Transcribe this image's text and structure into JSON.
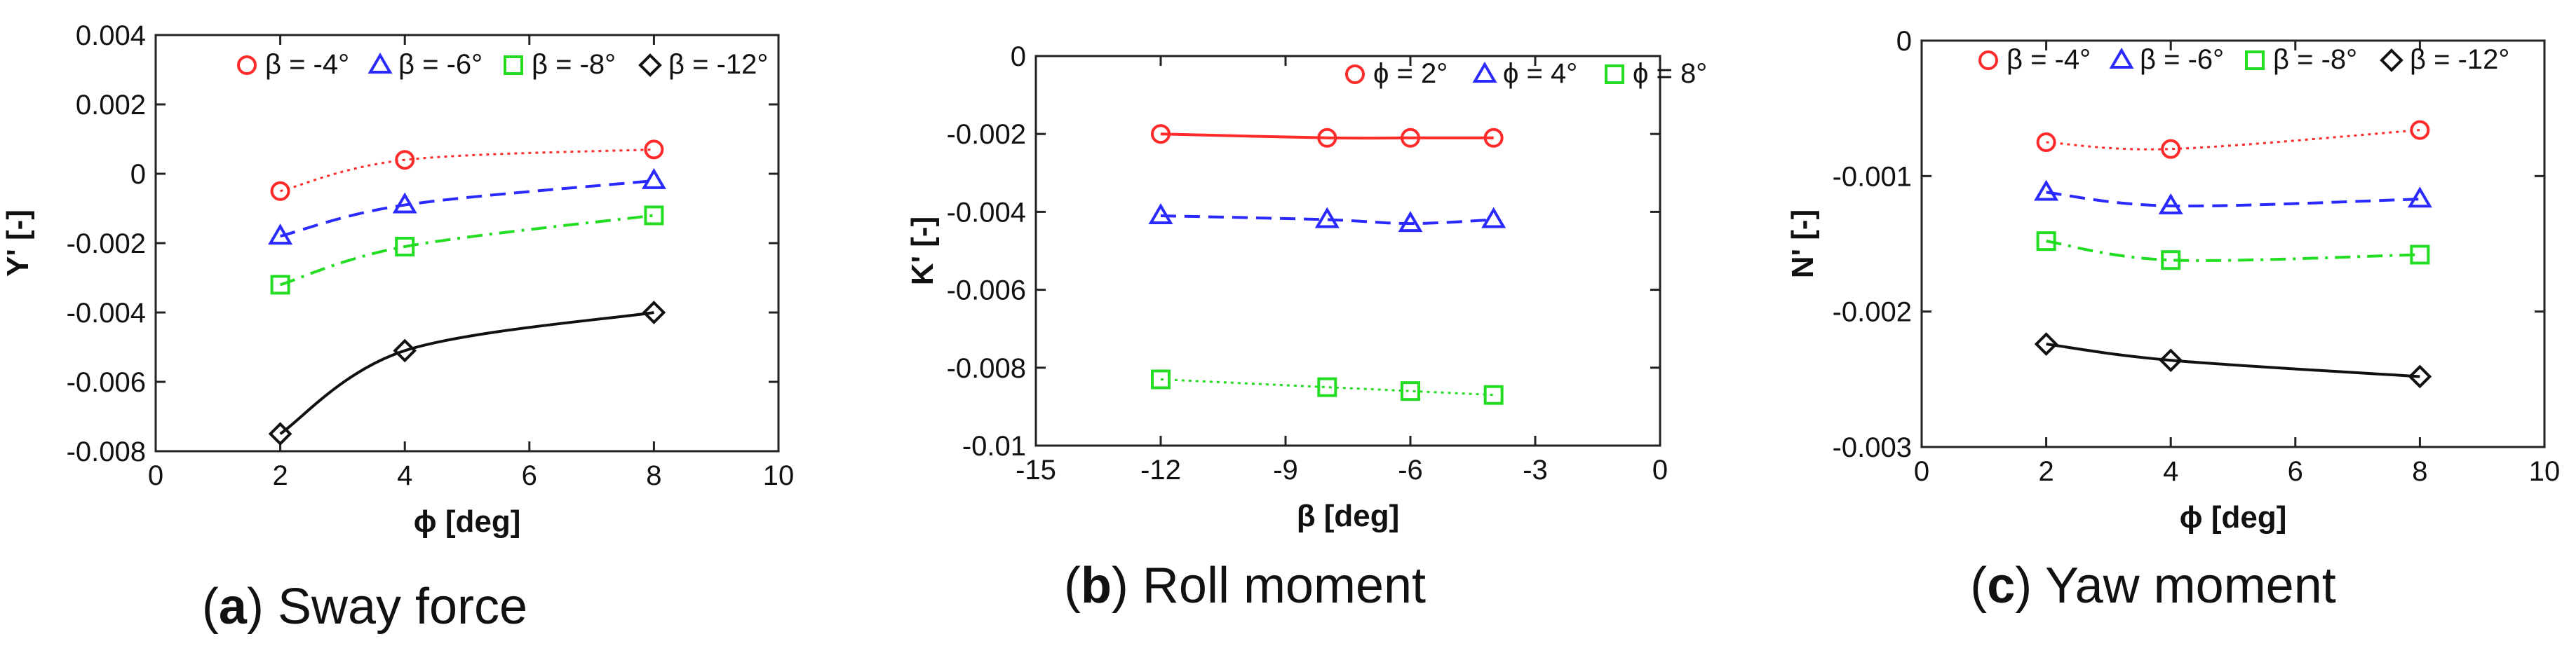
{
  "chart_data": [
    {
      "type": "line",
      "caption": {
        "letter": "a",
        "text": "Sway force"
      },
      "xlabel": "ϕ [deg]",
      "ylabel": "Y' [-]",
      "xlim": [
        0,
        10
      ],
      "ylim": [
        -0.008,
        0.004
      ],
      "xticks": [
        0,
        2,
        4,
        6,
        8,
        10
      ],
      "yticks": [
        -0.008,
        -0.006,
        -0.004,
        -0.002,
        0,
        0.002,
        0.004
      ],
      "x": [
        2,
        4,
        8
      ],
      "legend_position": "top",
      "series": [
        {
          "name": "β = -4°",
          "marker": "circle",
          "color": "#ff2a2a",
          "dash": "dotted",
          "values": [
            -0.0005,
            0.0004,
            0.0007
          ]
        },
        {
          "name": "β = -6°",
          "marker": "triangle",
          "color": "#2a2aff",
          "dash": "dashed",
          "values": [
            -0.0018,
            -0.0009,
            -0.0002
          ]
        },
        {
          "name": "β = -8°",
          "marker": "square",
          "color": "#22dd22",
          "dash": "dashdot",
          "values": [
            -0.0032,
            -0.0021,
            -0.0012
          ]
        },
        {
          "name": "β = -12°",
          "marker": "diamond",
          "color": "#111111",
          "dash": "solid",
          "values": [
            -0.0075,
            -0.0051,
            -0.004
          ]
        }
      ]
    },
    {
      "type": "line",
      "caption": {
        "letter": "b",
        "text": "Roll moment"
      },
      "xlabel": "β [deg]",
      "ylabel": "K' [-]",
      "xlim": [
        -15,
        0
      ],
      "ylim": [
        -0.01,
        0
      ],
      "xticks": [
        -15,
        -12,
        -9,
        -6,
        -3,
        0
      ],
      "yticks": [
        -0.01,
        -0.008,
        -0.006,
        -0.004,
        -0.002,
        0
      ],
      "x": [
        -12,
        -8,
        -6,
        -4
      ],
      "legend_position": "top-right",
      "series": [
        {
          "name": "ϕ = 2°",
          "marker": "circle",
          "color": "#ff2a2a",
          "dash": "solid",
          "values": [
            -0.002,
            -0.0021,
            -0.0021,
            -0.0021
          ]
        },
        {
          "name": "ϕ = 4°",
          "marker": "triangle",
          "color": "#2a2aff",
          "dash": "dashed",
          "values": [
            -0.0041,
            -0.0042,
            -0.0043,
            -0.0042
          ]
        },
        {
          "name": "ϕ = 8°",
          "marker": "square",
          "color": "#22dd22",
          "dash": "dotted",
          "values": [
            -0.0083,
            -0.0085,
            -0.0086,
            -0.0087
          ]
        }
      ]
    },
    {
      "type": "line",
      "caption": {
        "letter": "c",
        "text": "Yaw moment"
      },
      "xlabel": "ϕ [deg]",
      "ylabel": "N' [-]",
      "xlim": [
        0,
        10
      ],
      "ylim": [
        -0.003,
        0
      ],
      "xticks": [
        0,
        2,
        4,
        6,
        8,
        10
      ],
      "yticks": [
        -0.003,
        -0.002,
        -0.001,
        0
      ],
      "x": [
        2,
        4,
        8
      ],
      "legend_position": "top",
      "series": [
        {
          "name": "β = -4°",
          "marker": "circle",
          "color": "#ff2a2a",
          "dash": "dotted",
          "values": [
            -0.00075,
            -0.0008,
            -0.00066
          ]
        },
        {
          "name": "β = -6°",
          "marker": "triangle",
          "color": "#2a2aff",
          "dash": "dashed",
          "values": [
            -0.00112,
            -0.00122,
            -0.00117
          ]
        },
        {
          "name": "β = -8°",
          "marker": "square",
          "color": "#22dd22",
          "dash": "dashdot",
          "values": [
            -0.00148,
            -0.00162,
            -0.00158
          ]
        },
        {
          "name": "β = -12°",
          "marker": "diamond",
          "color": "#111111",
          "dash": "solid",
          "values": [
            -0.00224,
            -0.00236,
            -0.00248
          ]
        }
      ]
    }
  ]
}
